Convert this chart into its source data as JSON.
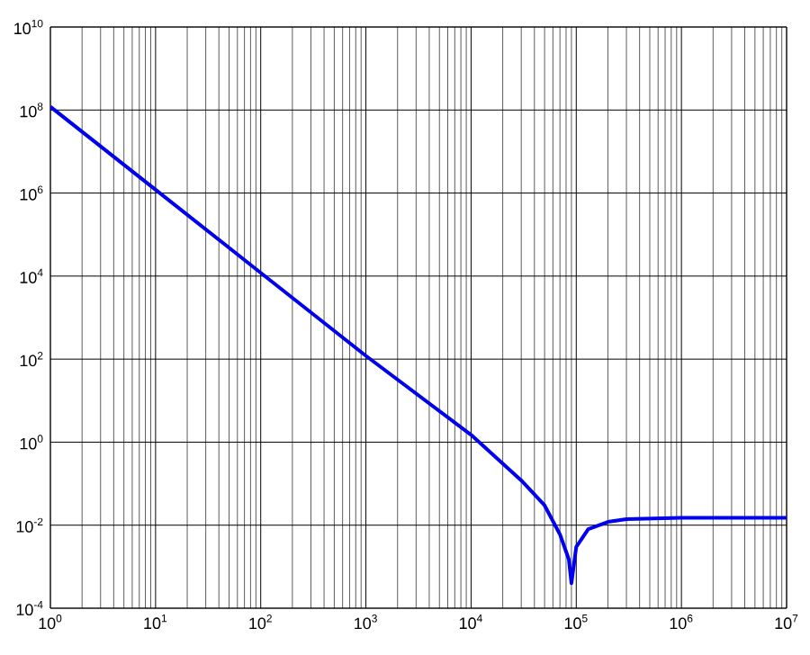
{
  "chart_data": {
    "type": "line",
    "log": "xy",
    "grid": true,
    "xlim": [
      1,
      10000000
    ],
    "ylim": [
      0.0001,
      10000000000
    ],
    "xticks": [
      {
        "value": 1,
        "label": "10$^{0}$"
      },
      {
        "value": 10,
        "label": "10$^{1}$"
      },
      {
        "value": 100,
        "label": "10$^{2}$"
      },
      {
        "value": 1000,
        "label": "10$^{3}$"
      },
      {
        "value": 10000,
        "label": "10$^{4}$"
      },
      {
        "value": 100000,
        "label": "10$^{5}$"
      },
      {
        "value": 1000000,
        "label": "10$^{6}$"
      },
      {
        "value": 10000000,
        "label": "10$^{7}$"
      }
    ],
    "yticks": [
      {
        "value": 0.0001,
        "label": "10$^{-4}$"
      },
      {
        "value": 0.01,
        "label": "10$^{-2}$"
      },
      {
        "value": 1,
        "label": "10$^{0}$"
      },
      {
        "value": 100,
        "label": "10$^{2}$"
      },
      {
        "value": 10000,
        "label": "10$^{4}$"
      },
      {
        "value": 1000000,
        "label": "10$^{6}$"
      },
      {
        "value": 100000000,
        "label": "10$^{8}$"
      },
      {
        "value": 10000000000,
        "label": "10$^{10}$"
      }
    ],
    "series": [
      {
        "color": "#0000ee",
        "x": [
          1,
          10,
          100,
          1000,
          10000,
          30000,
          50000,
          70000,
          85000,
          90000,
          100000,
          130000,
          200000,
          300000,
          1000000,
          10000000
        ],
        "values": [
          120000000,
          1200000,
          12000,
          120,
          1.5,
          0.12,
          0.03,
          0.006,
          0.0015,
          0.0004,
          0.003,
          0.008,
          0.012,
          0.014,
          0.015,
          0.015
        ]
      }
    ]
  }
}
